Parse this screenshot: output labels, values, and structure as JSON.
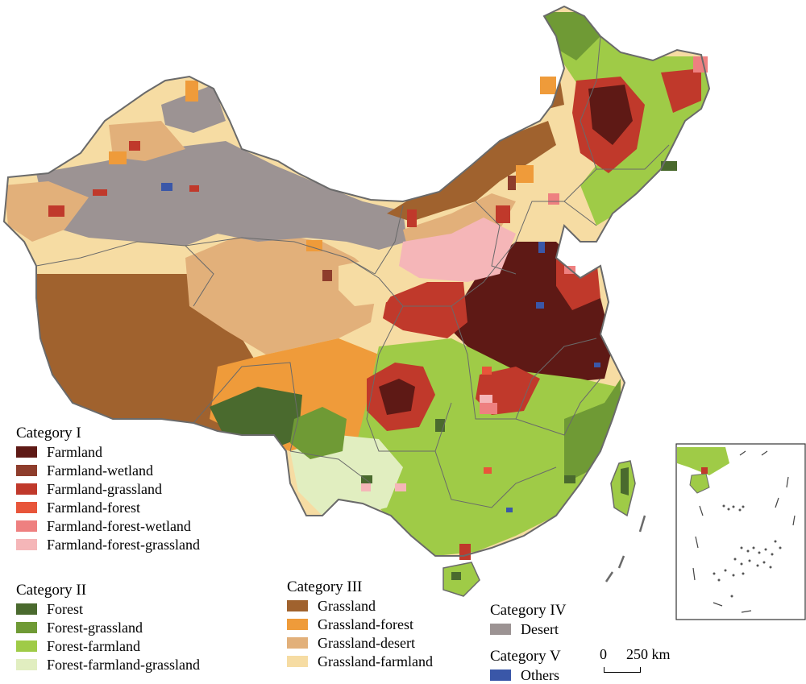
{
  "legend": {
    "categories": [
      {
        "title": "Category I",
        "items": [
          {
            "label": "Farmland",
            "color": "#5e1915"
          },
          {
            "label": "Farmland-wetland",
            "color": "#8e3d2c"
          },
          {
            "label": "Farmland-grassland",
            "color": "#c0392b"
          },
          {
            "label": "Farmland-forest",
            "color": "#e8553a"
          },
          {
            "label": "Farmland-forest-wetland",
            "color": "#ee8080"
          },
          {
            "label": "Farmland-forest-grassland",
            "color": "#f5b6b8"
          }
        ]
      },
      {
        "title": "Category II",
        "items": [
          {
            "label": "Forest",
            "color": "#4a6a2e"
          },
          {
            "label": "Forest-grassland",
            "color": "#6f9a35"
          },
          {
            "label": "Forest-farmland",
            "color": "#9fcb47"
          },
          {
            "label": "Forest-farmland-grassland",
            "color": "#e1eec0"
          }
        ]
      },
      {
        "title": "Category III",
        "items": [
          {
            "label": "Grassland",
            "color": "#a0622e"
          },
          {
            "label": "Grassland-forest",
            "color": "#ef9b3a"
          },
          {
            "label": "Grassland-desert",
            "color": "#e2b07a"
          },
          {
            "label": "Grassland-farmland",
            "color": "#f6dca3"
          }
        ]
      },
      {
        "title": "Category IV",
        "items": [
          {
            "label": "Desert",
            "color": "#9c9393"
          }
        ]
      },
      {
        "title": "Category V",
        "items": [
          {
            "label": "Others",
            "color": "#3a57a8"
          }
        ]
      }
    ]
  },
  "scale": {
    "zero": "0",
    "text": "250 km"
  }
}
